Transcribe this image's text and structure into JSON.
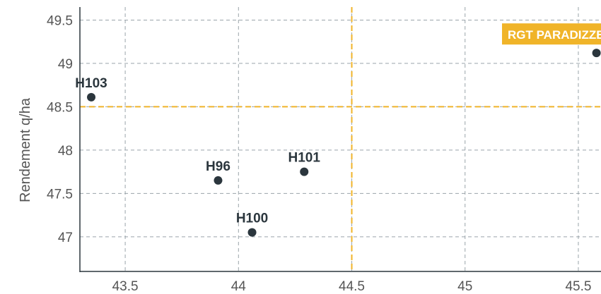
{
  "chart_data": {
    "type": "scatter",
    "xlabel": "",
    "ylabel": "Rendement q/ha",
    "xlim": [
      43.3,
      45.6
    ],
    "ylim": [
      46.6,
      49.65
    ],
    "x_ticks": [
      "43.5",
      "44",
      "44.5",
      "45",
      "45.5"
    ],
    "y_ticks": [
      "47",
      "47.5",
      "48",
      "48.5",
      "49",
      "49.5"
    ],
    "grid": true,
    "reference_lines": {
      "x": 44.5,
      "y": 48.5
    },
    "points": [
      {
        "label": "H103",
        "x": 43.35,
        "y": 48.61
      },
      {
        "label": "H96",
        "x": 43.91,
        "y": 47.65
      },
      {
        "label": "H101",
        "x": 44.29,
        "y": 47.75
      },
      {
        "label": "H100",
        "x": 44.06,
        "y": 47.05
      },
      {
        "label": "RGT PARADIZZE",
        "x": 45.58,
        "y": 49.12,
        "highlight": true
      }
    ]
  },
  "colors": {
    "point": "#2b363d",
    "grid": "#9aa4aa",
    "reference": "#f0b429",
    "highlight_bg": "#f0b429",
    "axis": "#2b363d"
  }
}
